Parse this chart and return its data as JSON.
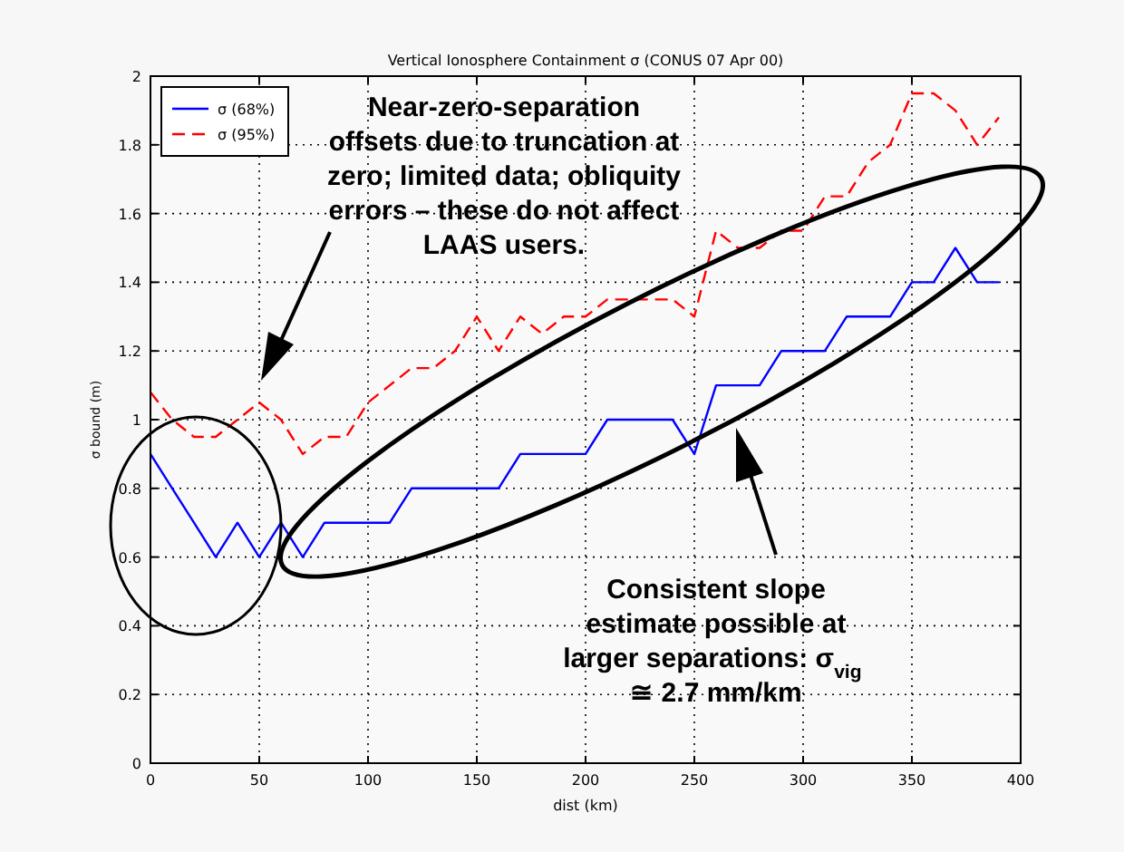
{
  "chart_data": {
    "type": "line",
    "title": "Vertical Ionosphere Containment σ (CONUS 07 Apr 00)",
    "xlabel": "dist (km)",
    "ylabel": "σ bound (m)",
    "x": [
      0,
      10,
      20,
      30,
      40,
      50,
      60,
      70,
      80,
      90,
      100,
      110,
      120,
      130,
      140,
      150,
      160,
      170,
      180,
      190,
      200,
      210,
      220,
      230,
      240,
      250,
      260,
      270,
      280,
      290,
      300,
      310,
      320,
      330,
      340,
      350,
      360,
      370,
      380,
      390
    ],
    "series": [
      {
        "name": "σ (68%)",
        "color": "#0000ff",
        "line_style": "solid",
        "values": [
          0.9,
          0.8,
          0.7,
          0.6,
          0.7,
          0.6,
          0.7,
          0.6,
          0.7,
          0.7,
          0.7,
          0.7,
          0.8,
          0.8,
          0.8,
          0.8,
          0.8,
          0.9,
          0.9,
          0.9,
          0.9,
          1.0,
          1.0,
          1.0,
          1.0,
          0.9,
          1.1,
          1.1,
          1.1,
          1.2,
          1.2,
          1.2,
          1.3,
          1.3,
          1.3,
          1.4,
          1.4,
          1.5,
          1.4,
          1.4
        ]
      },
      {
        "name": "σ (95%)",
        "color": "#ff0000",
        "line_style": "dashed",
        "values": [
          1.08,
          1.0,
          0.95,
          0.95,
          1.0,
          1.05,
          1.0,
          0.9,
          0.95,
          0.95,
          1.05,
          1.1,
          1.15,
          1.15,
          1.2,
          1.3,
          1.2,
          1.3,
          1.25,
          1.3,
          1.3,
          1.35,
          1.35,
          1.35,
          1.35,
          1.3,
          1.55,
          1.5,
          1.5,
          1.55,
          1.55,
          1.65,
          1.65,
          1.75,
          1.8,
          1.95,
          1.95,
          1.9,
          1.8,
          1.88
        ]
      }
    ],
    "xlim": [
      0,
      400
    ],
    "xticks": [
      0,
      50,
      100,
      150,
      200,
      250,
      300,
      350,
      400
    ],
    "ylim": [
      0,
      2
    ],
    "yticks": [
      0,
      0.2,
      0.4,
      0.6,
      0.8,
      1,
      1.2,
      1.4,
      1.6,
      1.8,
      2
    ],
    "grid": true,
    "legend": "top left",
    "marker": "none",
    "annotations": [
      "Near-zero-separation offsets due to truncation at zero; limited data; obliquity errors – these do not affect LAAS users.",
      "Consistent slope estimate possible at larger separations: σ$_{vig}$ ≅ 2.7 mm/km"
    ]
  }
}
